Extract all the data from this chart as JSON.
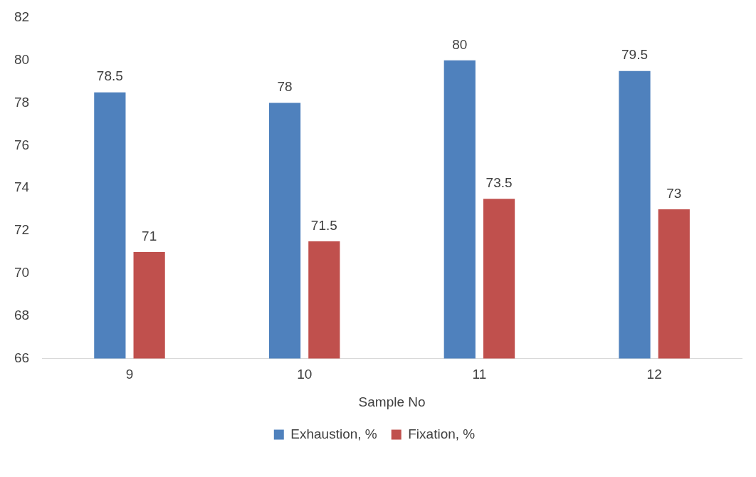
{
  "chart_data": {
    "type": "bar",
    "xlabel": "Sample No",
    "categories": [
      "9",
      "10",
      "11",
      "12"
    ],
    "series": [
      {
        "name": "Exhaustion, %",
        "color": "#4f81bd",
        "values": [
          78.5,
          78,
          80,
          79.5
        ]
      },
      {
        "name": "Fixation, %",
        "color": "#c0504d",
        "values": [
          71,
          71.5,
          73.5,
          73
        ]
      }
    ],
    "ylim": [
      66,
      82
    ],
    "yticks": [
      66,
      68,
      70,
      72,
      74,
      76,
      78,
      80,
      82
    ],
    "grid": false,
    "legend": "bottom",
    "data_labels": true
  }
}
